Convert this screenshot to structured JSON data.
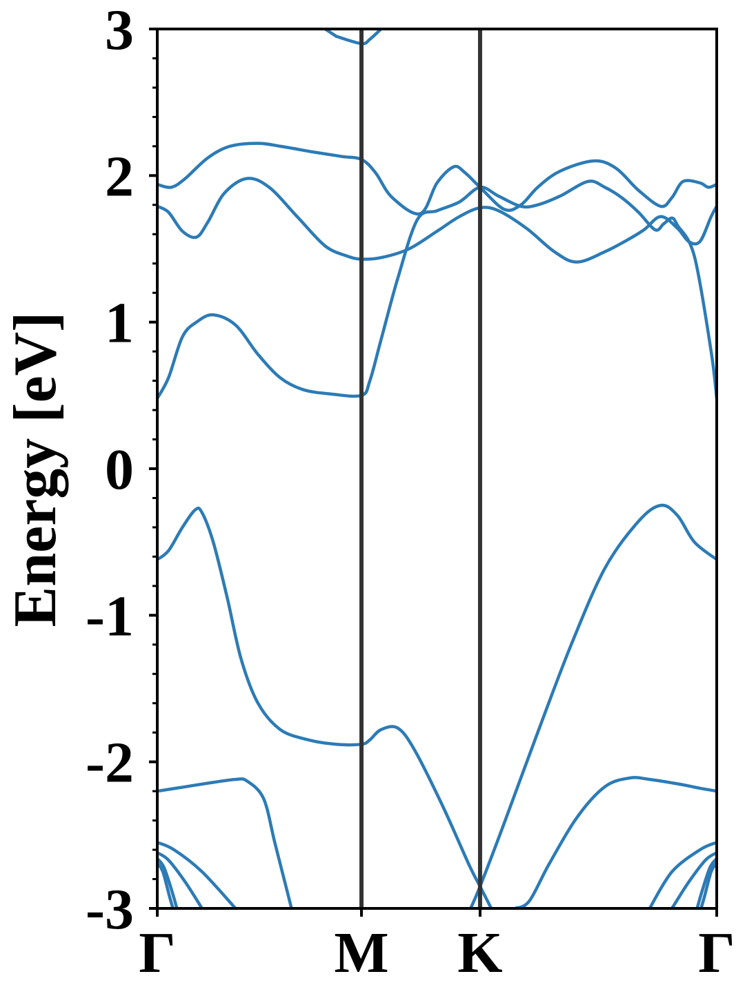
{
  "chart_data": {
    "type": "line",
    "title": "",
    "xlabel": "",
    "ylabel": "Energy [eV]",
    "ylim": [
      -3,
      3
    ],
    "yticks": [
      3,
      2,
      1,
      0,
      -1,
      -2,
      -3
    ],
    "ytick_labels": [
      "3",
      "2",
      "1",
      "0",
      "-1",
      "-2",
      "-3"
    ],
    "x_range": [
      0,
      1
    ],
    "xticks": [
      0,
      0.365,
      0.577,
      1.0
    ],
    "xtick_labels": [
      "Γ",
      "M",
      "K",
      "Γ"
    ],
    "high_symmetry_lines": [
      0.365,
      0.577
    ],
    "grid": false,
    "legend": "none",
    "line_color": "#2c7bb6",
    "series": [
      {
        "values": [
          [
            0,
            -2.69
          ],
          [
            0.01,
            -2.75
          ],
          [
            0.022,
            -2.92
          ],
          [
            0.028,
            -3.0
          ]
        ]
      },
      {
        "values": [
          [
            0,
            -2.66
          ],
          [
            0.012,
            -2.72
          ],
          [
            0.026,
            -2.88
          ],
          [
            0.035,
            -3.0
          ]
        ]
      },
      {
        "values": [
          [
            0,
            -2.62
          ],
          [
            0.02,
            -2.67
          ],
          [
            0.05,
            -2.82
          ],
          [
            0.08,
            -3.0
          ]
        ]
      },
      {
        "values": [
          [
            0,
            -2.55
          ],
          [
            0.03,
            -2.6
          ],
          [
            0.08,
            -2.75
          ],
          [
            0.14,
            -3.0
          ]
        ]
      },
      {
        "values": [
          [
            0,
            -2.2
          ],
          [
            0.05,
            -2.17
          ],
          [
            0.1,
            -2.14
          ],
          [
            0.14,
            -2.12
          ],
          [
            0.16,
            -2.13
          ],
          [
            0.19,
            -2.25
          ],
          [
            0.21,
            -2.55
          ],
          [
            0.23,
            -2.85
          ],
          [
            0.24,
            -3.0
          ]
        ]
      },
      {
        "values": [
          [
            0,
            -0.62
          ],
          [
            0.02,
            -0.56
          ],
          [
            0.045,
            -0.4
          ],
          [
            0.068,
            -0.28
          ],
          [
            0.08,
            -0.3
          ],
          [
            0.1,
            -0.5
          ],
          [
            0.125,
            -0.88
          ],
          [
            0.15,
            -1.3
          ],
          [
            0.18,
            -1.6
          ],
          [
            0.22,
            -1.78
          ],
          [
            0.27,
            -1.85
          ],
          [
            0.32,
            -1.88
          ],
          [
            0.365,
            -1.88
          ],
          [
            0.38,
            -1.85
          ],
          [
            0.4,
            -1.78
          ],
          [
            0.43,
            -1.77
          ],
          [
            0.46,
            -1.92
          ],
          [
            0.51,
            -2.3
          ],
          [
            0.557,
            -2.7
          ],
          [
            0.577,
            -2.85
          ],
          [
            0.597,
            -3.0
          ]
        ]
      },
      {
        "values": [
          [
            0.56,
            -3.0
          ],
          [
            0.577,
            -2.85
          ],
          [
            0.62,
            -2.42
          ],
          [
            0.68,
            -1.8
          ],
          [
            0.74,
            -1.2
          ],
          [
            0.8,
            -0.68
          ],
          [
            0.86,
            -0.36
          ],
          [
            0.9,
            -0.25
          ],
          [
            0.93,
            -0.32
          ],
          [
            0.96,
            -0.5
          ],
          [
            1.0,
            -0.62
          ]
        ]
      },
      {
        "values": [
          [
            0.64,
            -3.0
          ],
          [
            0.665,
            -2.95
          ],
          [
            0.7,
            -2.7
          ],
          [
            0.75,
            -2.38
          ],
          [
            0.8,
            -2.17
          ],
          [
            0.845,
            -2.11
          ],
          [
            0.88,
            -2.12
          ],
          [
            0.93,
            -2.15
          ],
          [
            0.97,
            -2.18
          ],
          [
            1.0,
            -2.2
          ]
        ]
      },
      {
        "values": [
          [
            1.0,
            -2.55
          ],
          [
            0.97,
            -2.6
          ],
          [
            0.92,
            -2.75
          ],
          [
            0.88,
            -3.0
          ]
        ]
      },
      {
        "values": [
          [
            1.0,
            -2.62
          ],
          [
            0.98,
            -2.67
          ],
          [
            0.95,
            -2.82
          ],
          [
            0.92,
            -3.0
          ]
        ]
      },
      {
        "values": [
          [
            1.0,
            -2.66
          ],
          [
            0.988,
            -2.72
          ],
          [
            0.974,
            -2.88
          ],
          [
            0.965,
            -3.0
          ]
        ]
      },
      {
        "values": [
          [
            1.0,
            -2.69
          ],
          [
            0.99,
            -2.75
          ],
          [
            0.978,
            -2.92
          ],
          [
            0.972,
            -3.0
          ]
        ]
      },
      {
        "values": [
          [
            0,
            0.48
          ],
          [
            0.02,
            0.62
          ],
          [
            0.045,
            0.9
          ],
          [
            0.07,
            1.0
          ],
          [
            0.1,
            1.05
          ],
          [
            0.14,
            0.98
          ],
          [
            0.18,
            0.78
          ],
          [
            0.22,
            0.62
          ],
          [
            0.26,
            0.54
          ],
          [
            0.31,
            0.51
          ],
          [
            0.365,
            0.5
          ],
          [
            0.38,
            0.6
          ],
          [
            0.4,
            0.88
          ],
          [
            0.43,
            1.3
          ],
          [
            0.465,
            1.7
          ],
          [
            0.5,
            1.76
          ],
          [
            0.54,
            1.82
          ],
          [
            0.577,
            1.92
          ],
          [
            0.61,
            1.86
          ],
          [
            0.65,
            1.79
          ],
          [
            0.68,
            1.8
          ],
          [
            0.72,
            1.86
          ],
          [
            0.77,
            1.96
          ],
          [
            0.8,
            1.92
          ],
          [
            0.83,
            1.85
          ],
          [
            0.86,
            1.75
          ],
          [
            0.89,
            1.63
          ],
          [
            0.905,
            1.67
          ],
          [
            0.92,
            1.71
          ],
          [
            0.93,
            1.66
          ],
          [
            0.96,
            1.45
          ],
          [
            0.99,
            0.8
          ],
          [
            1.0,
            0.48
          ]
        ]
      },
      {
        "values": [
          [
            0,
            1.94
          ],
          [
            0.025,
            1.92
          ],
          [
            0.05,
            1.98
          ],
          [
            0.09,
            2.12
          ],
          [
            0.13,
            2.2
          ],
          [
            0.18,
            2.22
          ],
          [
            0.22,
            2.2
          ],
          [
            0.28,
            2.16
          ],
          [
            0.33,
            2.13
          ],
          [
            0.365,
            2.11
          ],
          [
            0.39,
            2.02
          ],
          [
            0.42,
            1.85
          ],
          [
            0.47,
            1.74
          ],
          [
            0.5,
            1.95
          ],
          [
            0.53,
            2.06
          ],
          [
            0.55,
            2.02
          ],
          [
            0.577,
            1.92
          ],
          [
            0.62,
            1.77
          ],
          [
            0.65,
            1.8
          ],
          [
            0.68,
            1.92
          ],
          [
            0.72,
            2.03
          ],
          [
            0.78,
            2.1
          ],
          [
            0.82,
            2.05
          ],
          [
            0.86,
            1.9
          ],
          [
            0.9,
            1.79
          ],
          [
            0.92,
            1.85
          ],
          [
            0.94,
            1.96
          ],
          [
            0.97,
            1.95
          ],
          [
            0.985,
            1.92
          ],
          [
            1.0,
            1.94
          ]
        ]
      },
      {
        "values": [
          [
            0,
            1.79
          ],
          [
            0.02,
            1.75
          ],
          [
            0.045,
            1.62
          ],
          [
            0.07,
            1.58
          ],
          [
            0.09,
            1.68
          ],
          [
            0.12,
            1.88
          ],
          [
            0.16,
            1.98
          ],
          [
            0.2,
            1.92
          ],
          [
            0.25,
            1.72
          ],
          [
            0.3,
            1.52
          ],
          [
            0.34,
            1.45
          ],
          [
            0.365,
            1.43
          ],
          [
            0.4,
            1.44
          ],
          [
            0.45,
            1.5
          ],
          [
            0.5,
            1.62
          ],
          [
            0.54,
            1.72
          ],
          [
            0.577,
            1.78
          ],
          [
            0.61,
            1.76
          ],
          [
            0.66,
            1.64
          ],
          [
            0.71,
            1.48
          ],
          [
            0.75,
            1.41
          ],
          [
            0.8,
            1.48
          ],
          [
            0.84,
            1.56
          ],
          [
            0.87,
            1.63
          ],
          [
            0.9,
            1.72
          ],
          [
            0.93,
            1.64
          ],
          [
            0.95,
            1.55
          ],
          [
            0.97,
            1.55
          ],
          [
            0.99,
            1.72
          ],
          [
            1.0,
            1.79
          ]
        ]
      },
      {
        "values": [
          [
            0.32,
            2.95
          ],
          [
            0.365,
            2.9
          ],
          [
            0.38,
            2.93
          ],
          [
            0.4,
            3.0
          ]
        ]
      },
      {
        "values": [
          [
            0.3,
            3.0
          ],
          [
            0.32,
            2.95
          ]
        ]
      }
    ]
  }
}
